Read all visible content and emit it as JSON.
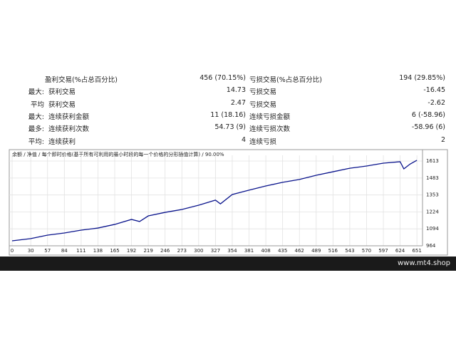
{
  "table": {
    "rows": [
      {
        "label": "盈利交易(%占总百分比)",
        "value": "456 (70.15%)",
        "label2": "亏损交易(%占总百分比)",
        "value2": "194 (29.85%)"
      },
      {
        "prefix": "最大:",
        "label": "获利交易",
        "value": "14.73",
        "label2": "亏损交易",
        "value2": "-16.45"
      },
      {
        "prefix": "平均",
        "label": "获利交易",
        "value": "2.47",
        "label2": "亏损交易",
        "value2": "-2.62"
      },
      {
        "prefix": "最大:",
        "label": "连续获利金额",
        "value": "11 (18.16)",
        "label2": "连续亏损金额",
        "value2": "6 (-58.96)"
      },
      {
        "prefix": "最多:",
        "label": "连续获利次数",
        "value": "54.73 (9)",
        "label2": "连续亏损次数",
        "value2": "-58.96 (6)"
      },
      {
        "prefix": "平均:",
        "label": "连续获利",
        "value": "4",
        "label2": "连续亏损",
        "value2": "2"
      }
    ]
  },
  "chart_data": {
    "type": "line",
    "title": "余额 / 净值 / 每个即时价格(基于所有可利用的最小时段的每一个价格的分形插值计算) / 90.00%",
    "x": [
      0,
      30,
      57,
      84,
      111,
      138,
      165,
      192,
      205,
      219,
      246,
      273,
      300,
      327,
      335,
      354,
      381,
      408,
      435,
      462,
      489,
      516,
      543,
      570,
      597,
      624,
      630,
      640,
      651
    ],
    "series": [
      {
        "name": "余额",
        "color": "#0a148c",
        "values": [
          1002,
          1019,
          1046,
          1062,
          1084,
          1100,
          1128,
          1166,
          1150,
          1193,
          1220,
          1242,
          1275,
          1314,
          1285,
          1357,
          1390,
          1422,
          1450,
          1472,
          1504,
          1531,
          1558,
          1575,
          1597,
          1608,
          1553,
          1590,
          1619
        ]
      }
    ],
    "xlim": [
      0,
      660
    ],
    "ylim": [
      964,
      1635
    ],
    "xticks": [
      0,
      30,
      57,
      84,
      111,
      138,
      165,
      192,
      219,
      246,
      273,
      300,
      327,
      354,
      381,
      408,
      435,
      462,
      489,
      516,
      543,
      570,
      597,
      624,
      651
    ],
    "yticks": [
      964,
      1094,
      1224,
      1353,
      1483,
      1613
    ],
    "grid": true
  },
  "footer": {
    "watermark": "www.mt4.shop"
  }
}
